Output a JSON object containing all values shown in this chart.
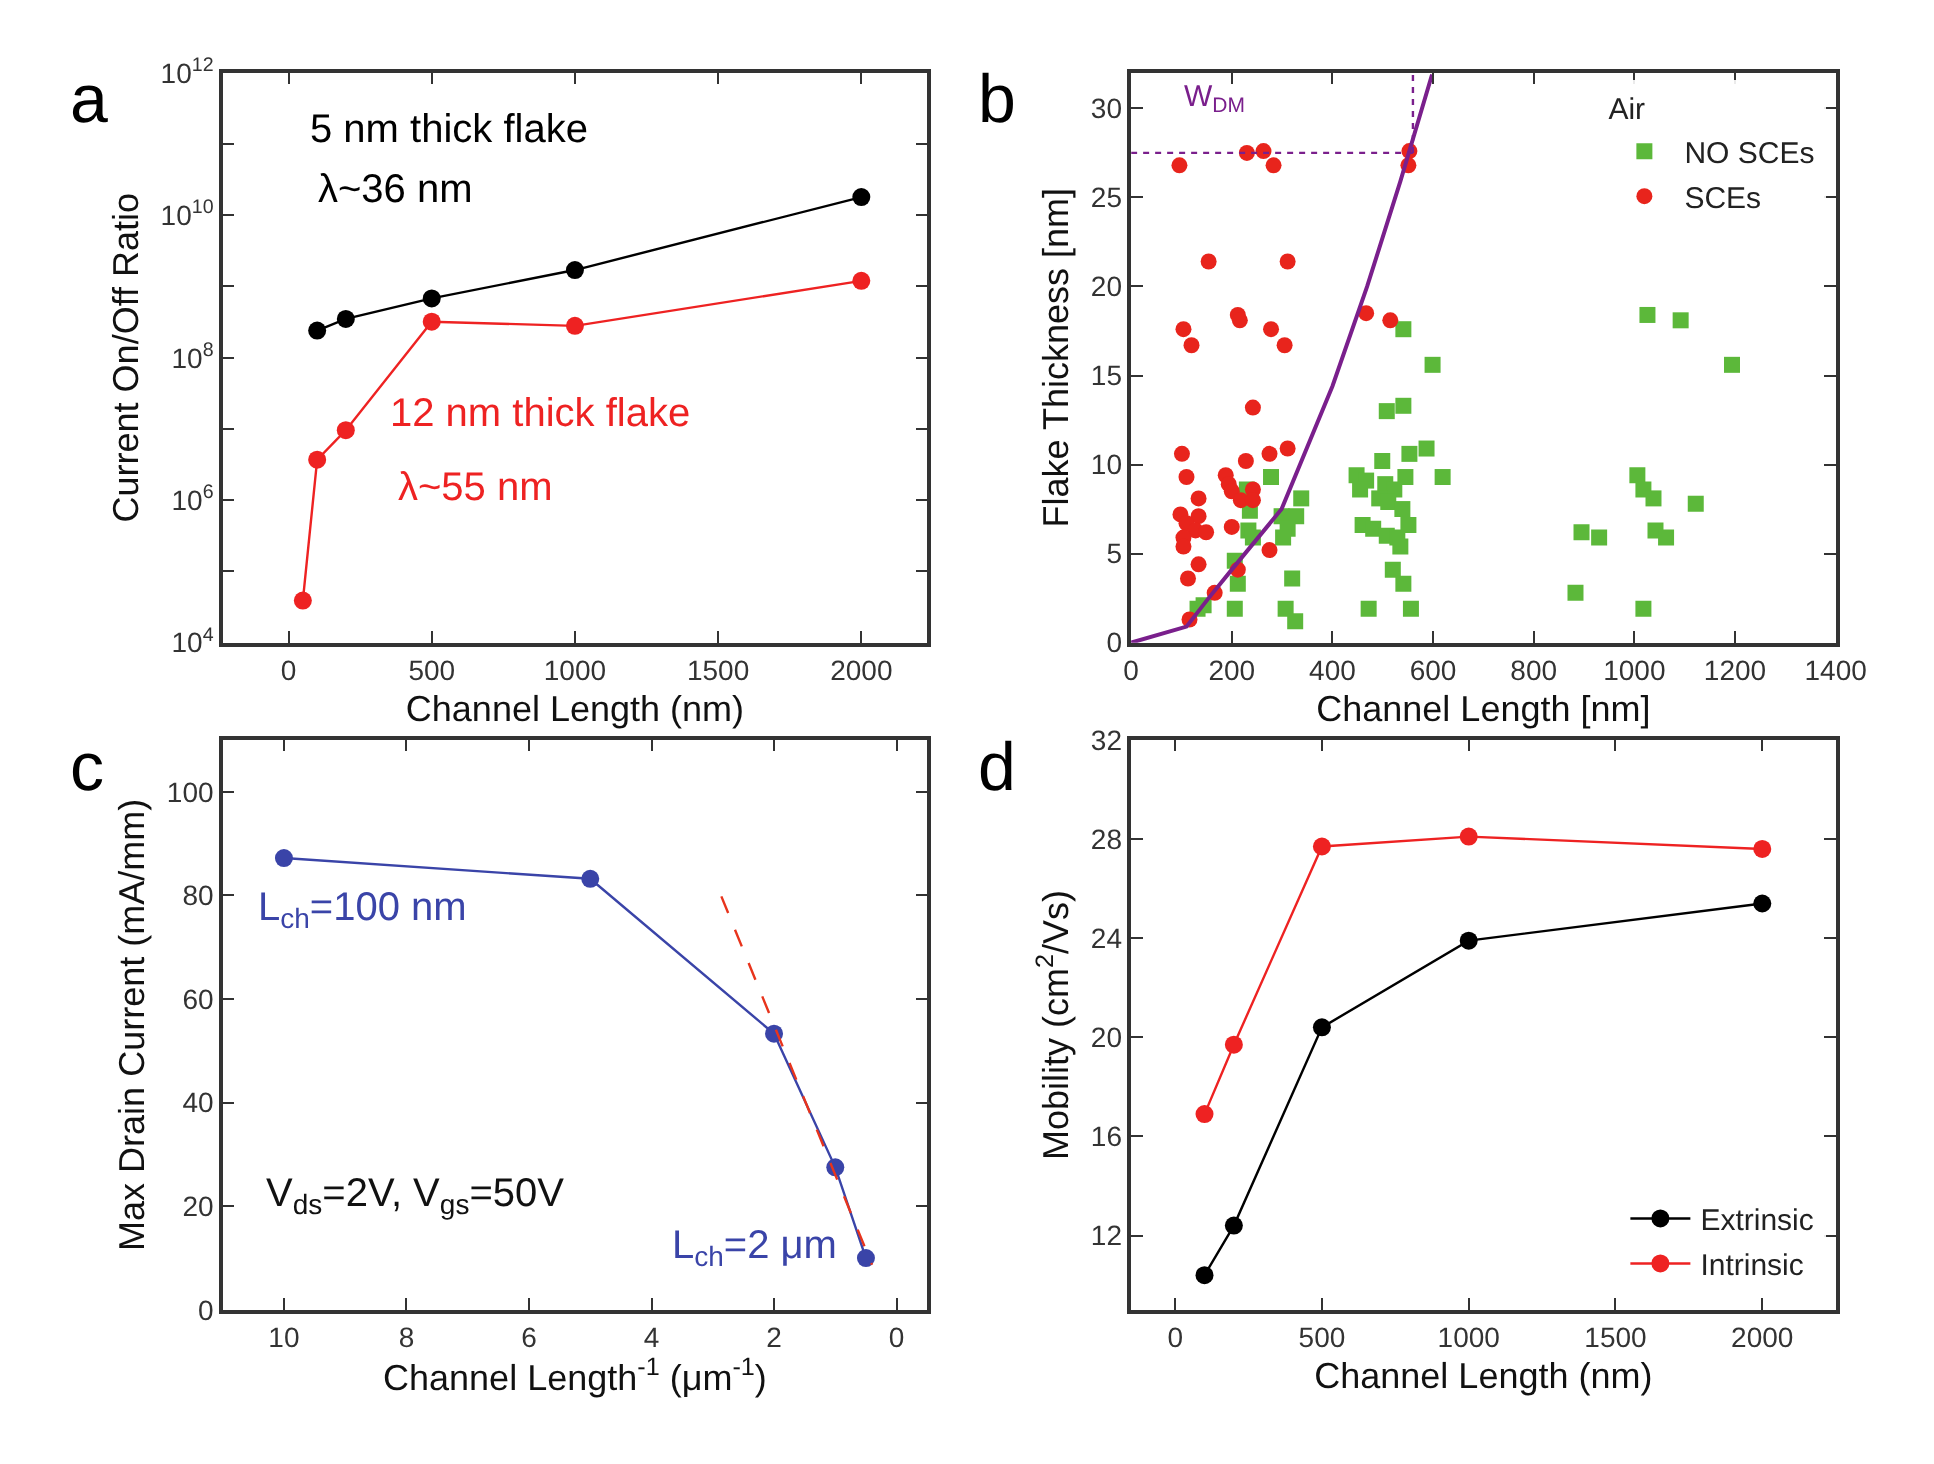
{
  "chart_data": [
    {
      "type": "line",
      "xlabel": "Channel Length (nm)",
      "ylabel": "Current On/Off Ratio",
      "log": "y",
      "marker": "circle",
      "xlim": [
        -230,
        2230
      ],
      "xticks": [
        0,
        500,
        1000,
        1500,
        2000
      ],
      "ylim": [
        10000,
        1000000000000
      ],
      "yticks": [
        {
          "value": 10000,
          "label": "10$^{4}$"
        },
        {
          "value": 100000,
          "label": null
        },
        {
          "value": 1000000,
          "label": "10$^{6}$"
        },
        {
          "value": 10000000,
          "label": null
        },
        {
          "value": 100000000,
          "label": "10$^{8}$"
        },
        {
          "value": 1000000000,
          "label": null
        },
        {
          "value": 10000000000,
          "label": "10$^{10}$"
        },
        {
          "value": 100000000000,
          "label": null
        },
        {
          "value": 1000000000000,
          "label": "10$^{12}$"
        }
      ],
      "series": [
        {
          "color": "#000000",
          "x": [
            100,
            200,
            500,
            1000,
            2000
          ],
          "values": [
            240000000,
            350000000,
            680000000,
            1700000000,
            18000000000
          ]
        },
        {
          "color": "#ee2222",
          "x": [
            50,
            100,
            200,
            500,
            1000,
            2000
          ],
          "values": [
            39000,
            3700000,
            9600000,
            320000000,
            280000000,
            1200000000
          ]
        }
      ],
      "annotations": [
        "a",
        "5 nm thick flake",
        "λ~36 nm",
        "12 nm thick flake",
        "λ~55 nm"
      ]
    },
    {
      "type": "scatter",
      "xlabel": "Channel Length [nm]",
      "ylabel": "Flake Thickness [nm]",
      "legend_title": "Air",
      "legend": "top right",
      "xlim": [
        0,
        1400
      ],
      "xticks": [
        0,
        200,
        400,
        600,
        800,
        1000,
        1200,
        1400
      ],
      "ylim": [
        0,
        32
      ],
      "yticks": [
        0,
        5,
        10,
        15,
        20,
        25,
        30
      ],
      "series": [
        {
          "name": "NO SCEs",
          "color": "#5cb83a",
          "marker": "square",
          "x": [
            278,
            230,
            236,
            338,
            328,
            299,
            311,
            302,
            233,
            242,
            206,
            212,
            206,
            132,
            144,
            320,
            307,
            326,
            448,
            467,
            455,
            499,
            505,
            523,
            493,
            511,
            539,
            545,
            553,
            587,
            619,
            460,
            481,
            508,
            529,
            551,
            535,
            520,
            541,
            472,
            556,
            508,
            541,
            541,
            599,
            883,
            895,
            930,
            1006,
            1018,
            1038,
            1042,
            1063,
            1018,
            1122,
            1026,
            1092,
            1194
          ],
          "values": [
            9.3,
            8.6,
            7.4,
            8.1,
            7.1,
            7.1,
            6.4,
            5.9,
            6.3,
            5.9,
            4.6,
            3.3,
            1.9,
            1.9,
            2.1,
            3.6,
            1.9,
            1.2,
            9.4,
            9.1,
            8.6,
            10.2,
            8.9,
            8.6,
            8.1,
            7.9,
            7.5,
            9.3,
            10.6,
            10.9,
            9.3,
            6.6,
            6.4,
            6.0,
            5.9,
            6.6,
            5.4,
            4.1,
            3.3,
            1.9,
            1.9,
            13.0,
            13.3,
            17.6,
            15.6,
            2.8,
            6.2,
            5.9,
            9.4,
            8.6,
            8.1,
            6.3,
            5.9,
            1.9,
            7.8,
            18.4,
            18.1,
            15.6
          ]
        },
        {
          "name": "SCEs",
          "color": "#e8241c",
          "marker": "circle",
          "x": [
            96,
            230,
            263,
            283,
            553,
            551,
            154,
            311,
            104,
            120,
            212,
            216,
            278,
            305,
            242,
            467,
            515,
            101,
            110,
            134,
            98,
            134,
            110,
            128,
            149,
            104,
            104,
            134,
            113,
            166,
            116,
            188,
            194,
            200,
            228,
            275,
            311,
            218,
            242,
            242,
            200,
            212,
            275
          ],
          "values": [
            26.8,
            27.5,
            27.6,
            26.8,
            27.6,
            26.8,
            21.4,
            21.4,
            17.6,
            16.7,
            18.4,
            18.1,
            17.6,
            16.7,
            13.2,
            18.5,
            18.1,
            10.6,
            9.3,
            8.1,
            7.2,
            7.1,
            6.7,
            6.3,
            6.2,
            5.9,
            5.4,
            4.4,
            3.6,
            2.8,
            1.3,
            9.4,
            8.9,
            8.5,
            10.2,
            10.6,
            10.9,
            8.0,
            8.6,
            8.0,
            6.5,
            4.1,
            5.2
          ]
        },
        {
          "type": "line",
          "color": "#7a1f8c",
          "marker": "none",
          "x": [
            0,
            110,
            154,
            200,
            299,
            400,
            469,
            535,
            598
          ],
          "values": [
            0,
            0.9,
            2.5,
            4.1,
            7.5,
            14.4,
            20,
            25.9,
            31.9
          ]
        },
        {
          "type": "line",
          "color": "#7a1f8c",
          "marker": "none",
          "line_style": "dotted",
          "x": [
            0,
            560
          ],
          "values": [
            27.5,
            27.5
          ]
        },
        {
          "type": "line",
          "color": "#7a1f8c",
          "marker": "none",
          "line_style": "dotted",
          "x": [
            560,
            560
          ],
          "values": [
            27.5,
            32
          ]
        }
      ],
      "annotations": [
        "b",
        "W$_{DM}$"
      ]
    },
    {
      "type": "line",
      "xlabel": "Channel Length$^{-1}$ (μm$^{-1}$)",
      "ylabel": "Max Drain Current (mA/mm)",
      "marker": "circle",
      "xlim": [
        11,
        -0.5
      ],
      "xticks": [
        10,
        8,
        6,
        4,
        2,
        0
      ],
      "ylim": [
        0,
        110
      ],
      "yticks": [
        0,
        20,
        40,
        60,
        80,
        100
      ],
      "series": [
        {
          "color": "#3a44a8",
          "x": [
            10,
            5,
            2,
            1,
            0.5
          ],
          "values": [
            87.2,
            83.2,
            53.3,
            27.5,
            10.0
          ]
        },
        {
          "color": "#e8341c",
          "marker": "none",
          "line_style": "dashed",
          "x": [
            2.86,
            0.4
          ],
          "values": [
            79.8,
            8.7
          ]
        }
      ],
      "annotations": [
        "c",
        "L$_{ch}$=100 nm",
        "V$_{ds}$=2V, V$_{gs}$=50V",
        "L$_{ch}$=2 μm"
      ]
    },
    {
      "type": "line",
      "xlabel": "Channel Length (nm)",
      "ylabel": "Mobility (cm$^{2}$/Vs)",
      "marker": "circle",
      "legend": "bottom right",
      "xlim": [
        -150,
        2250
      ],
      "xticks": [
        0,
        500,
        1000,
        1500,
        2000
      ],
      "ylim": [
        9,
        32
      ],
      "yticks": [
        12,
        16,
        20,
        24,
        28,
        32
      ],
      "series": [
        {
          "name": "Extrinsic",
          "color": "#000000",
          "x": [
            100,
            200,
            500,
            1000,
            2000
          ],
          "values": [
            10.4,
            12.4,
            20.4,
            23.9,
            25.4
          ]
        },
        {
          "name": "Intrinsic",
          "color": "#ee2222",
          "x": [
            100,
            200,
            500,
            1000,
            2000
          ],
          "values": [
            16.9,
            19.7,
            27.7,
            28.1,
            27.6
          ]
        }
      ],
      "annotations": [
        "d"
      ]
    }
  ]
}
